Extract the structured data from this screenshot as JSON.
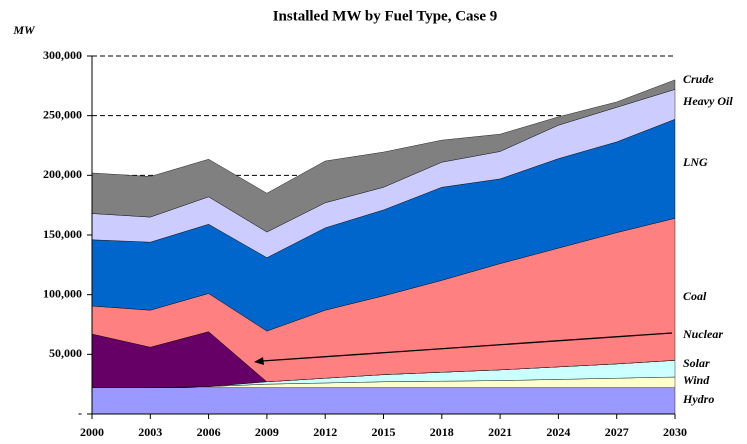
{
  "chart_data": {
    "type": "stacked_area",
    "title": "Installed MW by Fuel Type, Case 9",
    "y_label": "MW",
    "x": [
      2000,
      2003,
      2006,
      2009,
      2012,
      2015,
      2018,
      2021,
      2024,
      2027,
      2030
    ],
    "xlim": [
      2000,
      2030
    ],
    "xticks": [
      2000,
      2003,
      2006,
      2009,
      2012,
      2015,
      2018,
      2021,
      2024,
      2027,
      2030
    ],
    "ylim": [
      0,
      300000
    ],
    "yticks": [
      {
        "value": 0,
        "label": "-"
      },
      {
        "value": 50000,
        "label": "50,000"
      },
      {
        "value": 100000,
        "label": "100,000"
      },
      {
        "value": 150000,
        "label": "150,000"
      },
      {
        "value": 200000,
        "label": "200,000"
      },
      {
        "value": 250000,
        "label": "250,000"
      },
      {
        "value": 300000,
        "label": "300,000"
      }
    ],
    "grid": true,
    "series": [
      {
        "name": "Hydro",
        "color": "#9999ff",
        "values": [
          22000,
          22000,
          22000,
          22000,
          22000,
          22000,
          22000,
          22000,
          22000,
          22000,
          22000
        ]
      },
      {
        "name": "Wind",
        "color": "#ffffcc",
        "values": [
          0,
          0,
          1000,
          3000,
          4000,
          5000,
          5500,
          6000,
          7000,
          8000,
          9000
        ]
      },
      {
        "name": "Solar",
        "color": "#ccffff",
        "values": [
          0,
          0,
          0,
          2000,
          4000,
          6000,
          7500,
          9000,
          10500,
          12000,
          14000
        ]
      },
      {
        "name": "Nuclear",
        "color": "#660066",
        "values": [
          45000,
          34000,
          46000,
          0,
          0,
          0,
          0,
          0,
          0,
          0,
          0
        ]
      },
      {
        "name": "Coal",
        "color": "#ff8080",
        "values": [
          23500,
          31000,
          32000,
          42500,
          57000,
          66000,
          77000,
          89000,
          99500,
          110000,
          119000
        ]
      },
      {
        "name": "LNG",
        "color": "#0066cc",
        "values": [
          55500,
          57000,
          58000,
          61500,
          69000,
          72000,
          78000,
          71000,
          75000,
          76000,
          83000
        ]
      },
      {
        "name": "Heavy Oil",
        "color": "#ccccff",
        "values": [
          22000,
          21000,
          23000,
          21500,
          21000,
          19000,
          21000,
          23000,
          28000,
          29000,
          25000
        ]
      },
      {
        "name": "Crude",
        "color": "#808080",
        "values": [
          34000,
          34000,
          31500,
          32500,
          35000,
          29500,
          18500,
          14500,
          7000,
          4500,
          8000
        ]
      }
    ]
  }
}
